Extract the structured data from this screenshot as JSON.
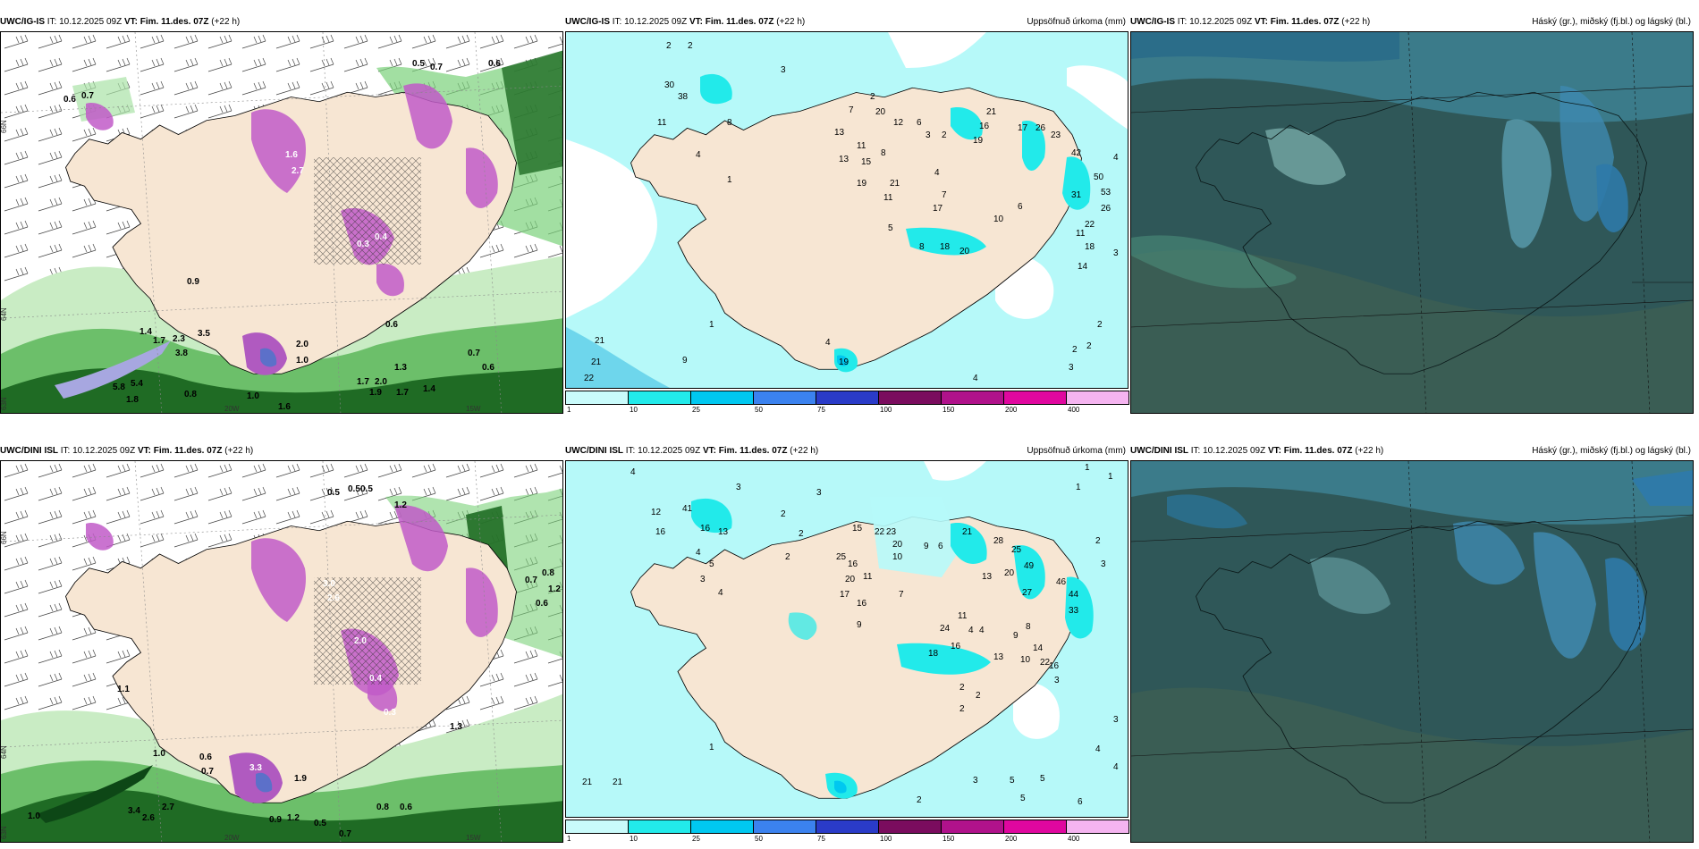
{
  "panels": [
    {
      "model": "UWC/IG-IS",
      "it_label": "IT:",
      "it_value": "10.12.2025 09Z",
      "vt_label": "VT:",
      "vt_value": "Fim. 11.des. 07Z",
      "lead": "(+22 h)",
      "right_title": "",
      "axis_labels": [
        "66N",
        "64N",
        "63N",
        "20W",
        "15W"
      ],
      "labels": [
        "0.6",
        "0.7",
        "0.5",
        "0.7",
        "0.6",
        "0.9",
        "1.4",
        "1.7",
        "2.3",
        "3.5",
        "3.8",
        "5.8",
        "5.4",
        "1.8",
        "0.8",
        "1.0",
        "1.6",
        "1.7",
        "2.0",
        "1.9",
        "1.7",
        "1.4",
        "0.7",
        "0.6",
        "1.3",
        "1.0",
        "2.0",
        "2.7",
        "1.6",
        "0.4",
        "0.3",
        "0.6"
      ]
    },
    {
      "model": "UWC/IG-IS",
      "it_label": "IT:",
      "it_value": "10.12.2025 09Z",
      "vt_label": "VT:",
      "vt_value": "Fim. 11.des. 07Z",
      "lead": "(+22 h)",
      "right_title": "Uppsöfnuð úrkoma (mm)",
      "labels": [
        "2",
        "2",
        "3",
        "30",
        "38",
        "11",
        "4",
        "1",
        "8",
        "2",
        "7",
        "20",
        "12",
        "6",
        "3",
        "2",
        "13",
        "11",
        "13",
        "15",
        "8",
        "19",
        "21",
        "11",
        "4",
        "7",
        "17",
        "6",
        "10",
        "5",
        "8",
        "18",
        "20",
        "21",
        "16",
        "17",
        "26",
        "23",
        "19",
        "42",
        "31",
        "50",
        "53",
        "26",
        "22",
        "18",
        "11",
        "14",
        "4",
        "3",
        "2",
        "2",
        "2",
        "1",
        "21",
        "21",
        "22",
        "9",
        "19",
        "2",
        "4",
        "4",
        "3"
      ],
      "colorbar": {
        "colors": [
          "#c9fbfb",
          "#22eaea",
          "#00c8f0",
          "#3b82ef",
          "#2a3bc8",
          "#7a0c5e",
          "#b0128b",
          "#e0079f",
          "#f5b4f0"
        ],
        "ticks": [
          "1",
          "10",
          "25",
          "50",
          "75",
          "100",
          "150",
          "200",
          "400"
        ]
      }
    },
    {
      "model": "UWC/IG-IS",
      "it_label": "IT:",
      "it_value": "10.12.2025 09Z",
      "vt_label": "VT:",
      "vt_value": "Fim. 11.des. 07Z",
      "lead": "(+22 h)",
      "right_title": "Háský (gr.), miðský (fj.bl.) og lágský (bl.)"
    },
    {
      "model": "UWC/DINI ISL",
      "it_label": "IT:",
      "it_value": "10.12.2025 09Z",
      "vt_label": "VT:",
      "vt_value": "Fim. 11.des. 07Z",
      "lead": "(+22 h)",
      "right_title": "",
      "axis_labels": [
        "66N",
        "64N",
        "63N",
        "20W",
        "15W"
      ],
      "labels": [
        "0.5",
        "0.5",
        "0.5",
        "1.2",
        "0.8",
        "1.2",
        "0.7",
        "0.6",
        "1.1",
        "1.0",
        "0.6",
        "0.7",
        "1.0",
        "3.4",
        "2.7",
        "2.6",
        "0.8",
        "0.6",
        "0.5",
        "0.7",
        "3.3",
        "1.9",
        "1.2",
        "0.9",
        "0.4",
        "2.0",
        "3.0",
        "2.6",
        "0.3",
        "1.3"
      ]
    },
    {
      "model": "UWC/DINI ISL",
      "it_label": "IT:",
      "it_value": "10.12.2025 09Z",
      "vt_label": "VT:",
      "vt_value": "Fim. 11.des. 07Z",
      "lead": "(+22 h)",
      "right_title": "Uppsöfnuð úrkoma (mm)",
      "labels": [
        "4",
        "3",
        "3",
        "2",
        "12",
        "41",
        "13",
        "16",
        "16",
        "2",
        "2",
        "4",
        "5",
        "3",
        "4",
        "15",
        "22",
        "23",
        "20",
        "10",
        "9",
        "6",
        "21",
        "28",
        "25",
        "20",
        "13",
        "49",
        "27",
        "46",
        "44",
        "33",
        "25",
        "16",
        "20",
        "11",
        "17",
        "16",
        "7",
        "9",
        "24",
        "11",
        "4",
        "4",
        "9",
        "8",
        "14",
        "16",
        "18",
        "13",
        "10",
        "22",
        "16",
        "3",
        "2",
        "2",
        "2",
        "1",
        "21",
        "21",
        "4",
        "4",
        "3",
        "5",
        "5",
        "5",
        "3",
        "6",
        "2",
        "1",
        "1",
        "1",
        "2",
        "3"
      ],
      "colorbar": {
        "colors": [
          "#c9fbfb",
          "#22eaea",
          "#00c8f0",
          "#3b82ef",
          "#2a3bc8",
          "#7a0c5e",
          "#b0128b",
          "#e0079f",
          "#f5b4f0"
        ],
        "ticks": [
          "1",
          "10",
          "25",
          "50",
          "75",
          "100",
          "150",
          "200",
          "400"
        ]
      }
    },
    {
      "model": "UWC/DINI ISL",
      "it_label": "IT:",
      "it_value": "10.12.2025 09Z",
      "vt_label": "VT:",
      "vt_value": "Fim. 11.des. 07Z",
      "lead": "(+22 h)",
      "right_title": "Háský (gr.), miðský (fj.bl.) og lágský (bl.)"
    }
  ]
}
